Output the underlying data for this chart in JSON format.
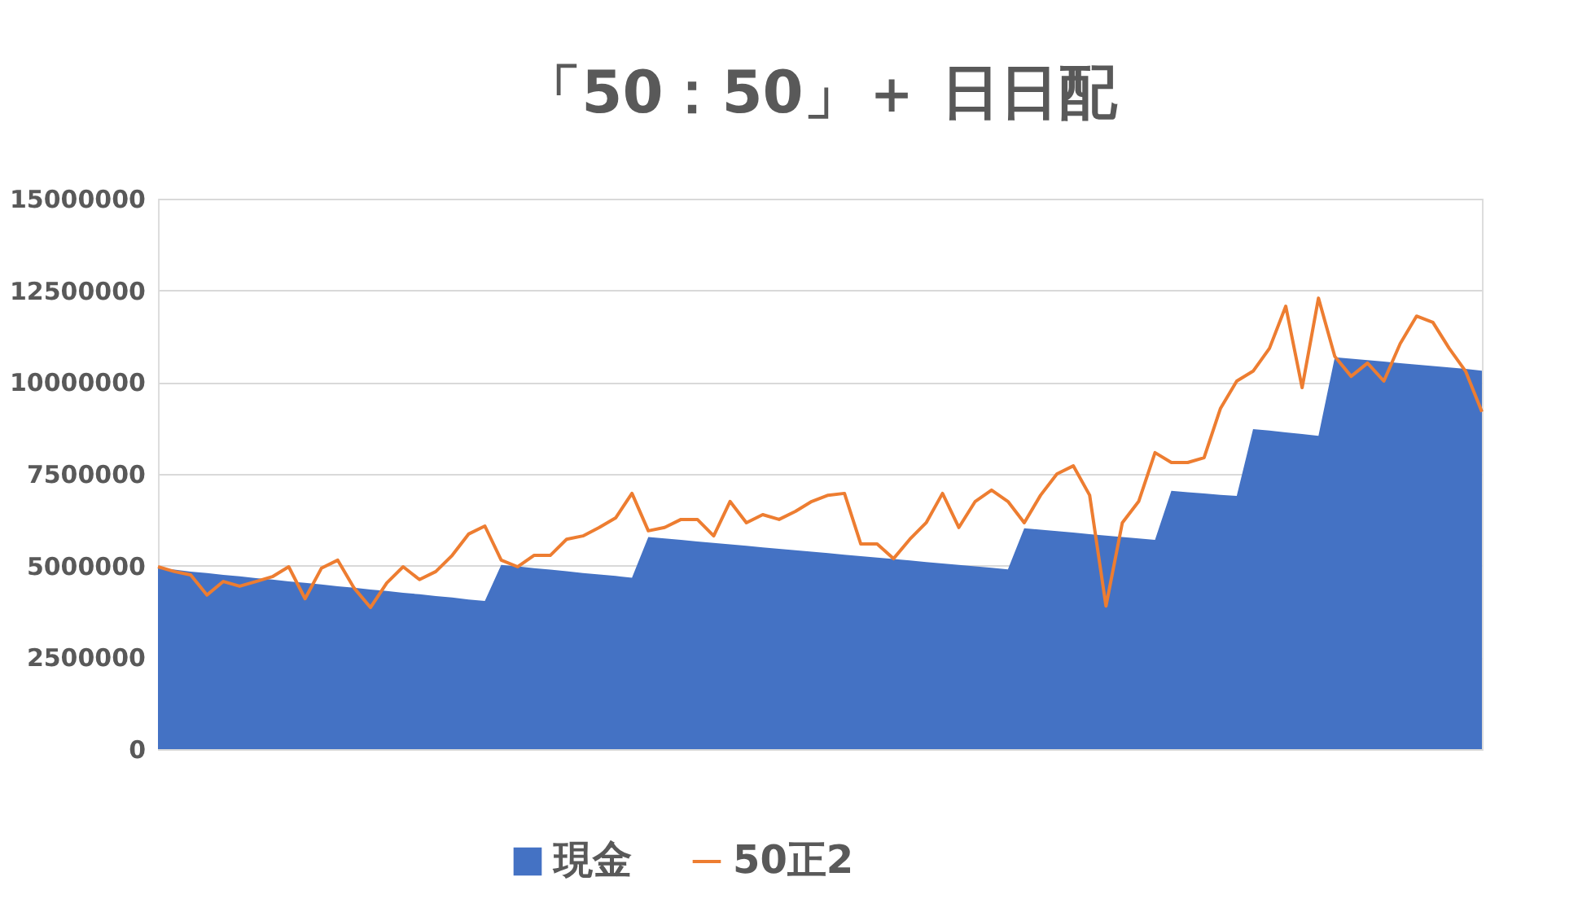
{
  "chart_data": {
    "type": "area",
    "title": "「50：50」＋ 日日配",
    "categories": [
      null,
      null,
      null,
      null,
      null,
      null,
      null,
      null,
      null,
      null,
      null,
      null,
      null,
      null,
      null,
      null,
      null,
      null,
      null,
      null,
      null,
      null,
      null,
      null,
      null,
      null,
      null,
      null,
      null,
      null,
      null,
      null,
      null,
      null,
      null,
      null,
      null,
      null,
      null,
      null,
      null,
      null,
      null,
      null,
      null,
      null,
      null,
      null,
      null,
      null,
      null,
      null,
      null,
      null,
      null,
      null,
      null,
      null,
      null,
      null,
      null,
      null,
      null,
      null,
      null,
      null,
      null,
      null,
      null,
      null,
      null,
      null,
      null,
      null,
      null,
      null,
      null,
      null,
      null,
      null,
      null,
      null
    ],
    "series": [
      {
        "name": "現金",
        "color": "#4472c4",
        "values": [
          4930000,
          4890000,
          4840000,
          4800000,
          4750000,
          4710000,
          4660000,
          4620000,
          4570000,
          4530000,
          4490000,
          4440000,
          4400000,
          4350000,
          4310000,
          4260000,
          4220000,
          4170000,
          4130000,
          4080000,
          4040000,
          5020000,
          4980000,
          4930000,
          4890000,
          4850000,
          4800000,
          4760000,
          4720000,
          4670000,
          5780000,
          5740000,
          5700000,
          5660000,
          5620000,
          5580000,
          5540000,
          5500000,
          5460000,
          5420000,
          5380000,
          5340000,
          5300000,
          5260000,
          5220000,
          5180000,
          5140000,
          5100000,
          5060000,
          5020000,
          4980000,
          4940000,
          4900000,
          6020000,
          5980000,
          5940000,
          5900000,
          5860000,
          5820000,
          5780000,
          5740000,
          5700000,
          7040000,
          7000000,
          6970000,
          6930000,
          6900000,
          8720000,
          8680000,
          8630000,
          8590000,
          8540000,
          10680000,
          10640000,
          10600000,
          10560000,
          10520000,
          10480000,
          10440000,
          10400000,
          10360000,
          10310000
        ]
      },
      {
        "name": "50正2",
        "type": "line",
        "color": "#ed7d31",
        "values": [
          4970000,
          4840000,
          4750000,
          4200000,
          4570000,
          4440000,
          4570000,
          4700000,
          4970000,
          4100000,
          4930000,
          5150000,
          4390000,
          3860000,
          4530000,
          4970000,
          4620000,
          4840000,
          5280000,
          5860000,
          6080000,
          5150000,
          4970000,
          5280000,
          5280000,
          5720000,
          5810000,
          6040000,
          6300000,
          6970000,
          5950000,
          6040000,
          6260000,
          6260000,
          5810000,
          6750000,
          6170000,
          6390000,
          6260000,
          6480000,
          6750000,
          6920000,
          6970000,
          5590000,
          5590000,
          5190000,
          5720000,
          6170000,
          6970000,
          6040000,
          6750000,
          7060000,
          6750000,
          6170000,
          6920000,
          7500000,
          7720000,
          6920000,
          3900000,
          6170000,
          6750000,
          8080000,
          7810000,
          7810000,
          7940000,
          9280000,
          10030000,
          10300000,
          10920000,
          12070000,
          9850000,
          12290000,
          10700000,
          10160000,
          10520000,
          10030000,
          11050000,
          11800000,
          11630000,
          10920000,
          10300000,
          9190000
        ]
      }
    ],
    "ylim": [
      0,
      15000000
    ],
    "yticks": [
      0,
      2500000,
      5000000,
      7500000,
      10000000,
      12500000,
      15000000
    ],
    "grid": "y",
    "legend": "bottom",
    "tick_labels": "y"
  }
}
